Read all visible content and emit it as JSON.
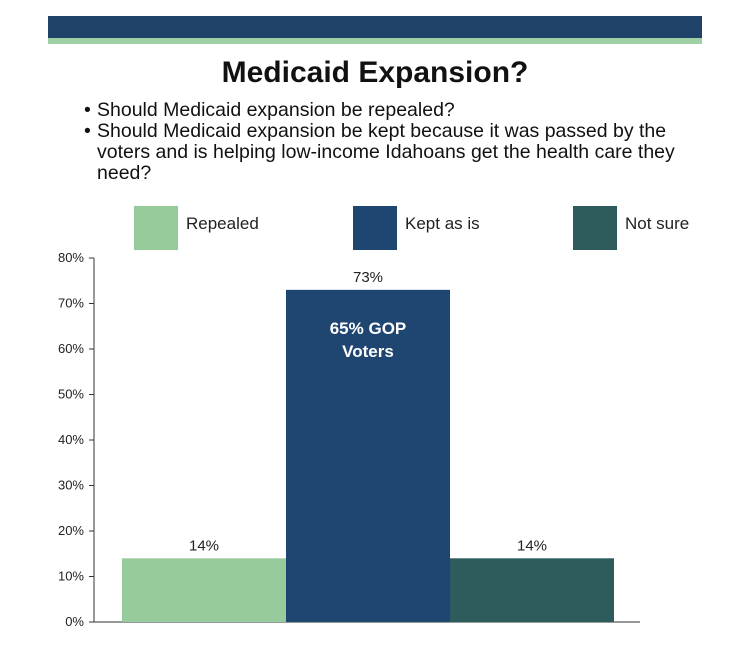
{
  "slide": {
    "title": "Medicaid Expansion?",
    "bullets": [
      "Should Medicaid expansion be repealed?",
      "Should Medicaid expansion be kept because it was passed by the voters and is helping low-income Idahoans get the health care they need?"
    ],
    "colors": {
      "header_bar": "#1f4268",
      "header_accent": "#9fcfa5"
    }
  },
  "chart_data": {
    "type": "bar",
    "categories": [
      "Repealed",
      "Kept as is",
      "Not sure"
    ],
    "values": [
      14,
      73,
      14
    ],
    "value_labels": [
      "14%",
      "73%",
      "14%"
    ],
    "colors": [
      "#97cb9c",
      "#1f4670",
      "#2e5b5c"
    ],
    "ylim": [
      0,
      80
    ],
    "yticks": [
      0,
      10,
      20,
      30,
      40,
      50,
      60,
      70,
      80
    ],
    "ytick_labels": [
      "0%",
      "10%",
      "20%",
      "30%",
      "40%",
      "50%",
      "60%",
      "70%",
      "80%"
    ],
    "legend": [
      "Repealed",
      "Kept as is",
      "Not sure"
    ],
    "legend_position": "top",
    "annotations": [
      {
        "category": "Kept as is",
        "lines": [
          "65% GOP",
          "Voters"
        ]
      }
    ],
    "grid": false,
    "title": "",
    "xlabel": "",
    "ylabel": ""
  }
}
